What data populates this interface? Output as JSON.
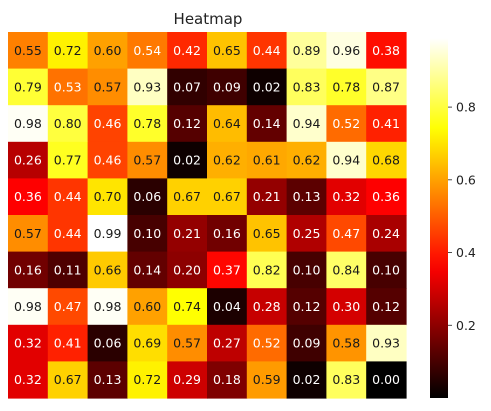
{
  "chart_data": {
    "type": "heatmap",
    "title": "Heatmap",
    "colormap": "hot",
    "grid": false,
    "legend": "colorbar-right",
    "value_range": [
      0.0,
      0.99
    ],
    "colorbar_ticks": [
      {
        "value": 0.2,
        "label": "0.2"
      },
      {
        "value": 0.4,
        "label": "0.4"
      },
      {
        "value": 0.6,
        "label": "0.6"
      },
      {
        "value": 0.8,
        "label": "0.8"
      }
    ],
    "cells": [
      [
        0.55,
        0.72,
        0.6,
        0.54,
        0.42,
        0.65,
        0.44,
        0.89,
        0.96,
        0.38
      ],
      [
        0.79,
        0.53,
        0.57,
        0.93,
        0.07,
        0.09,
        0.02,
        0.83,
        0.78,
        0.87
      ],
      [
        0.98,
        0.8,
        0.46,
        0.78,
        0.12,
        0.64,
        0.14,
        0.94,
        0.52,
        0.41
      ],
      [
        0.26,
        0.77,
        0.46,
        0.57,
        0.02,
        0.62,
        0.61,
        0.62,
        0.94,
        0.68
      ],
      [
        0.36,
        0.44,
        0.7,
        0.06,
        0.67,
        0.67,
        0.21,
        0.13,
        0.32,
        0.36
      ],
      [
        0.57,
        0.44,
        0.99,
        0.1,
        0.21,
        0.16,
        0.65,
        0.25,
        0.47,
        0.24
      ],
      [
        0.16,
        0.11,
        0.66,
        0.14,
        0.2,
        0.37,
        0.82,
        0.1,
        0.84,
        0.1
      ],
      [
        0.98,
        0.47,
        0.98,
        0.6,
        0.74,
        0.04,
        0.28,
        0.12,
        0.3,
        0.12
      ],
      [
        0.32,
        0.41,
        0.06,
        0.69,
        0.57,
        0.27,
        0.52,
        0.09,
        0.58,
        0.93
      ],
      [
        0.32,
        0.67,
        0.13,
        0.72,
        0.29,
        0.18,
        0.59,
        0.02,
        0.83,
        0.0
      ]
    ]
  }
}
